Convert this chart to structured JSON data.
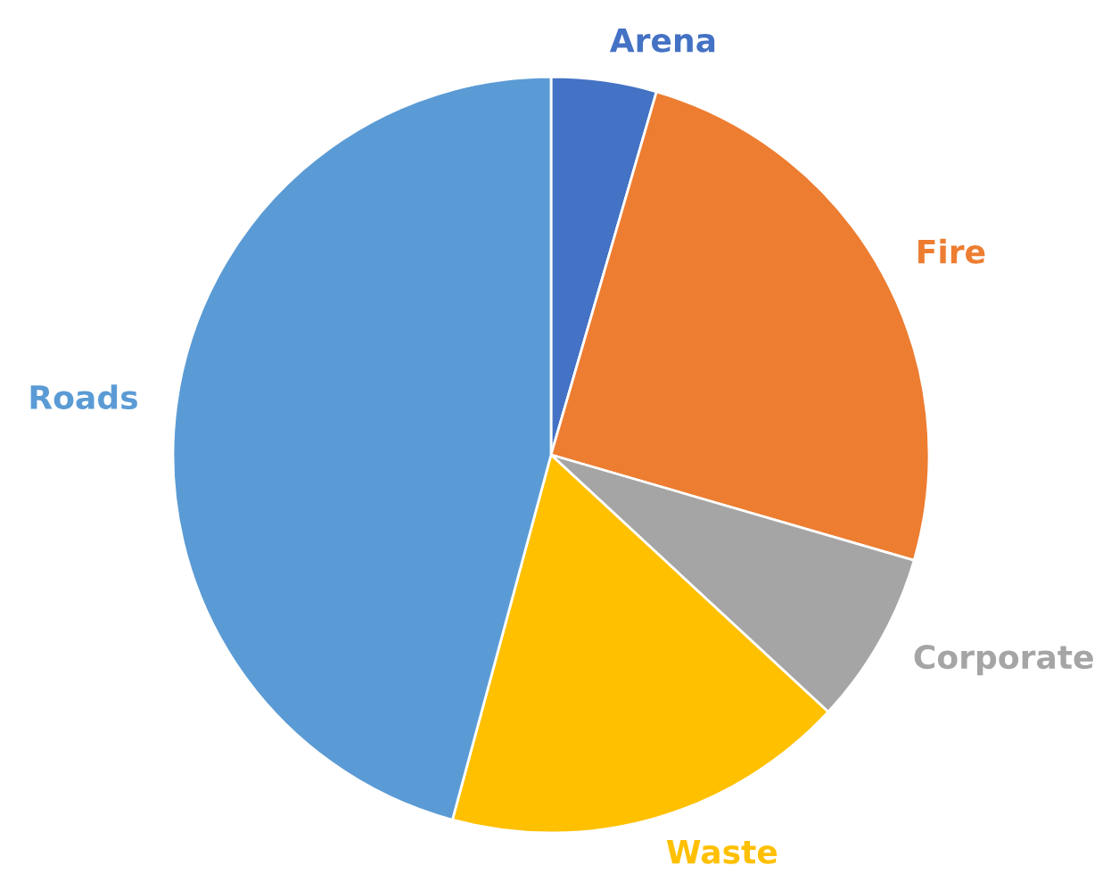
{
  "chart_data": {
    "type": "pie",
    "categories": [
      "Arena",
      "Fire",
      "Corporate",
      "Waste",
      "Roads"
    ],
    "values": [
      4.5,
      25,
      7.4,
      17.3,
      45.8
    ],
    "colors": [
      "#4472c4",
      "#ed7d31",
      "#a5a5a5",
      "#ffc000",
      "#5b9bd5"
    ],
    "legend": false
  }
}
